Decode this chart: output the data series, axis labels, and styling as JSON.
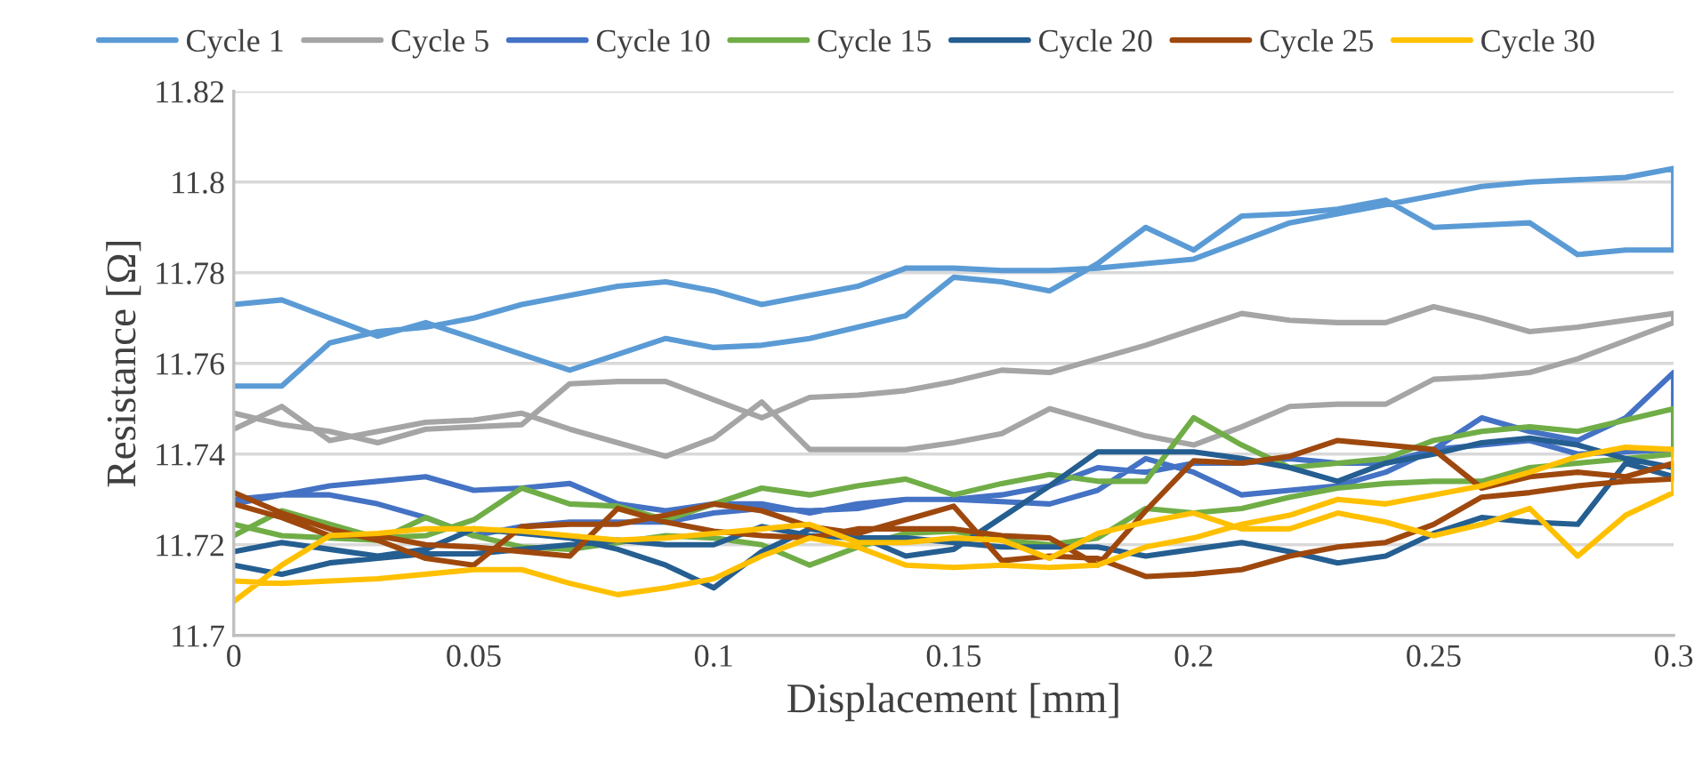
{
  "chart_data": {
    "type": "line",
    "xlabel": "Displacement [mm]",
    "ylabel": "Resistance [Ω]",
    "x": [
      0,
      0.01,
      0.02,
      0.03,
      0.04,
      0.05,
      0.06,
      0.07,
      0.08,
      0.09,
      0.1,
      0.11,
      0.12,
      0.13,
      0.14,
      0.15,
      0.16,
      0.17,
      0.18,
      0.19,
      0.2,
      0.21,
      0.22,
      0.23,
      0.24,
      0.25,
      0.26,
      0.27,
      0.28,
      0.29,
      0.3,
      0.3,
      0.29,
      0.28,
      0.27,
      0.26,
      0.25,
      0.24,
      0.23,
      0.22,
      0.21,
      0.2,
      0.19,
      0.18,
      0.17,
      0.16,
      0.15,
      0.14,
      0.13,
      0.12,
      0.11,
      0.1,
      0.09,
      0.08,
      0.07,
      0.06,
      0.05,
      0.04,
      0.03,
      0.02,
      0.01,
      0
    ],
    "xlim": [
      0,
      0.3
    ],
    "xticks": [
      0,
      0.05,
      0.1,
      0.15,
      0.2,
      0.25,
      0.3
    ],
    "ylim": [
      11.7,
      11.82
    ],
    "yticks": [
      11.7,
      11.72,
      11.74,
      11.76,
      11.78,
      11.8,
      11.82
    ],
    "grid": "y",
    "legend": "top",
    "marker": "none",
    "line_style": "solid",
    "series": [
      {
        "name": "Cycle 1",
        "color": "#5b9bd5",
        "values": [
          11.755,
          11.755,
          11.7645,
          11.767,
          11.768,
          11.77,
          11.773,
          11.775,
          11.777,
          11.778,
          11.776,
          11.773,
          11.775,
          11.777,
          11.781,
          11.781,
          11.7805,
          11.7805,
          11.781,
          11.782,
          11.783,
          11.787,
          11.791,
          11.793,
          11.795,
          11.797,
          11.799,
          11.8,
          11.8005,
          11.801,
          11.803,
          11.785,
          11.785,
          11.784,
          11.791,
          11.7905,
          11.79,
          11.796,
          11.794,
          11.793,
          11.7925,
          11.785,
          11.79,
          11.782,
          11.776,
          11.778,
          11.779,
          11.7705,
          11.768,
          11.7655,
          11.764,
          11.7635,
          11.7655,
          11.762,
          11.7585,
          11.762,
          11.7655,
          11.769,
          11.766,
          11.77,
          11.774,
          11.773
        ]
      },
      {
        "name": "Cycle 5",
        "color": "#a5a5a5",
        "values": [
          11.749,
          11.7465,
          11.745,
          11.7425,
          11.7455,
          11.746,
          11.7465,
          11.7555,
          11.756,
          11.756,
          11.752,
          11.748,
          11.7525,
          11.753,
          11.754,
          11.756,
          11.7585,
          11.758,
          11.761,
          11.764,
          11.7675,
          11.771,
          11.7695,
          11.769,
          11.769,
          11.7725,
          11.77,
          11.767,
          11.768,
          11.7695,
          11.771,
          11.769,
          11.765,
          11.761,
          11.758,
          11.757,
          11.7565,
          11.751,
          11.751,
          11.7505,
          11.746,
          11.742,
          11.744,
          11.747,
          11.75,
          11.7445,
          11.7425,
          11.741,
          11.741,
          11.741,
          11.7515,
          11.7435,
          11.7395,
          11.7425,
          11.7455,
          11.749,
          11.7475,
          11.747,
          11.745,
          11.743,
          11.7505,
          11.7455
        ]
      },
      {
        "name": "Cycle 10",
        "color": "#4472c4",
        "values": [
          11.729,
          11.731,
          11.733,
          11.734,
          11.735,
          11.732,
          11.7325,
          11.7335,
          11.729,
          11.7275,
          11.729,
          11.729,
          11.727,
          11.729,
          11.73,
          11.73,
          11.7295,
          11.729,
          11.732,
          11.739,
          11.736,
          11.731,
          11.732,
          11.733,
          11.736,
          11.741,
          11.748,
          11.745,
          11.743,
          11.748,
          11.758,
          11.741,
          11.7405,
          11.74,
          11.743,
          11.742,
          11.741,
          11.738,
          11.738,
          11.739,
          11.738,
          11.738,
          11.736,
          11.737,
          11.733,
          11.731,
          11.73,
          11.73,
          11.728,
          11.7275,
          11.728,
          11.727,
          11.725,
          11.725,
          11.725,
          11.724,
          11.722,
          11.726,
          11.729,
          11.731,
          11.731,
          11.73
        ]
      },
      {
        "name": "Cycle 15",
        "color": "#70ad47",
        "values": [
          11.722,
          11.7275,
          11.7245,
          11.7215,
          11.722,
          11.7255,
          11.7325,
          11.729,
          11.7285,
          11.7255,
          11.729,
          11.7325,
          11.731,
          11.733,
          11.7345,
          11.731,
          11.7335,
          11.7355,
          11.734,
          11.734,
          11.748,
          11.742,
          11.737,
          11.738,
          11.739,
          11.743,
          11.745,
          11.746,
          11.745,
          11.7475,
          11.75,
          11.74,
          11.739,
          11.738,
          11.737,
          11.734,
          11.734,
          11.7335,
          11.7325,
          11.7305,
          11.728,
          11.727,
          11.728,
          11.7215,
          11.72,
          11.721,
          11.723,
          11.7225,
          11.7195,
          11.7155,
          11.72,
          11.7215,
          11.722,
          11.7205,
          11.719,
          11.7195,
          11.722,
          11.726,
          11.721,
          11.7215,
          11.722,
          11.7245
        ]
      },
      {
        "name": "Cycle 20",
        "color": "#255e91",
        "values": [
          11.7185,
          11.7205,
          11.719,
          11.7175,
          11.719,
          11.7235,
          11.7225,
          11.7215,
          11.719,
          11.7155,
          11.7105,
          11.7185,
          11.7235,
          11.722,
          11.7175,
          11.719,
          11.726,
          11.733,
          11.7405,
          11.7405,
          11.7405,
          11.739,
          11.737,
          11.734,
          11.738,
          11.74,
          11.7425,
          11.7435,
          11.742,
          11.739,
          11.737,
          11.735,
          11.738,
          11.7245,
          11.725,
          11.726,
          11.7225,
          11.7175,
          11.716,
          11.7185,
          11.7205,
          11.719,
          11.7175,
          11.7195,
          11.7195,
          11.7195,
          11.7205,
          11.7215,
          11.7215,
          11.722,
          11.724,
          11.72,
          11.72,
          11.721,
          11.72,
          11.719,
          11.718,
          11.718,
          11.717,
          11.716,
          11.7135,
          11.7155
        ]
      },
      {
        "name": "Cycle 25",
        "color": "#9e480e",
        "values": [
          11.7315,
          11.727,
          11.7235,
          11.721,
          11.717,
          11.7155,
          11.724,
          11.7245,
          11.7245,
          11.7265,
          11.729,
          11.7275,
          11.724,
          11.7225,
          11.7255,
          11.7285,
          11.7165,
          11.7175,
          11.717,
          11.713,
          11.7135,
          11.7145,
          11.7175,
          11.7195,
          11.7205,
          11.7245,
          11.7305,
          11.7315,
          11.733,
          11.734,
          11.7345,
          11.738,
          11.735,
          11.736,
          11.735,
          11.7325,
          11.741,
          11.742,
          11.743,
          11.7395,
          11.738,
          11.7385,
          11.7275,
          11.7155,
          11.7215,
          11.722,
          11.7235,
          11.7235,
          11.7235,
          11.7215,
          11.722,
          11.723,
          11.725,
          11.728,
          11.7175,
          11.7185,
          11.7195,
          11.72,
          11.722,
          11.722,
          11.726,
          11.729
        ]
      },
      {
        "name": "Cycle 30",
        "color": "#ffc000",
        "values": [
          11.7075,
          11.7155,
          11.722,
          11.7225,
          11.7235,
          11.7235,
          11.723,
          11.722,
          11.721,
          11.7215,
          11.7225,
          11.7235,
          11.7245,
          11.7205,
          11.7205,
          11.7215,
          11.721,
          11.717,
          11.7225,
          11.725,
          11.727,
          11.7235,
          11.7235,
          11.727,
          11.725,
          11.722,
          11.7245,
          11.728,
          11.7175,
          11.7265,
          11.7315,
          11.741,
          11.7415,
          11.7395,
          11.736,
          11.733,
          11.731,
          11.729,
          11.73,
          11.7265,
          11.7245,
          11.7215,
          11.7195,
          11.7155,
          11.715,
          11.7155,
          11.715,
          11.7155,
          11.7195,
          11.7215,
          11.7175,
          11.7125,
          11.7105,
          11.709,
          11.7115,
          11.7145,
          11.7145,
          11.7135,
          11.7125,
          11.712,
          11.7115,
          11.712
        ]
      }
    ]
  }
}
